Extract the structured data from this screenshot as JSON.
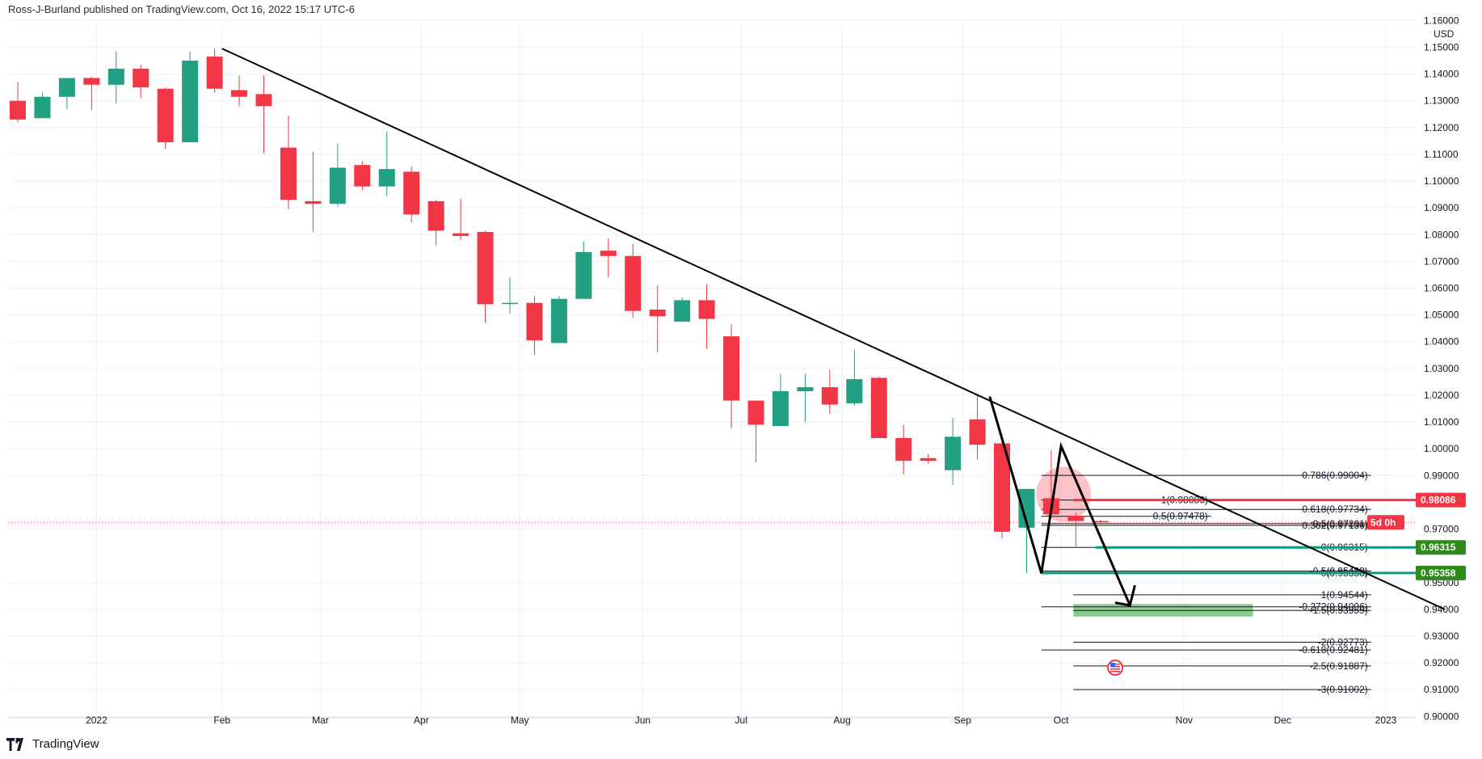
{
  "header": {
    "publisher_line": "Ross-J-Burland published on TradingView.com, Oct 16, 2022 15:17 UTC-6"
  },
  "footer": {
    "brand": "TradingView",
    "logo_icon": "tradingview-logo-icon"
  },
  "chart_data": {
    "type": "candlestick",
    "currency_label": "USD",
    "ylim": [
      0.8995,
      1.1592
    ],
    "y_ticks": [
      "1.16000",
      "1.15000",
      "1.14000",
      "1.13000",
      "1.12000",
      "1.11000",
      "1.10000",
      "1.09000",
      "1.08000",
      "1.07000",
      "1.06000",
      "1.05000",
      "1.04000",
      "1.03000",
      "1.02000",
      "1.01000",
      "1.00000",
      "0.99000",
      "0.97000",
      "0.95000",
      "0.94000",
      "0.93000",
      "0.92000",
      "0.91000",
      "0.90000"
    ],
    "x_ticks": [
      {
        "label": "2022",
        "week": 3.2
      },
      {
        "label": "Feb",
        "week": 8.3
      },
      {
        "label": "Mar",
        "week": 12.3
      },
      {
        "label": "Apr",
        "week": 16.4
      },
      {
        "label": "May",
        "week": 20.4
      },
      {
        "label": "Jun",
        "week": 25.4
      },
      {
        "label": "Jul",
        "week": 29.4
      },
      {
        "label": "Aug",
        "week": 33.5
      },
      {
        "label": "Sep",
        "week": 38.4
      },
      {
        "label": "Oct",
        "week": 42.4
      },
      {
        "label": "Nov",
        "week": 47.4
      },
      {
        "label": "Dec",
        "week": 51.4
      },
      {
        "label": "2023",
        "week": 55.6
      }
    ],
    "candles": [
      {
        "o": 1.13,
        "h": 1.137,
        "l": 1.122,
        "c": 1.123
      },
      {
        "o": 1.1235,
        "h": 1.133,
        "l": 1.1235,
        "c": 1.1315
      },
      {
        "o": 1.1315,
        "h": 1.137,
        "l": 1.127,
        "c": 1.1385
      },
      {
        "o": 1.1385,
        "h": 1.139,
        "l": 1.1265,
        "c": 1.136
      },
      {
        "o": 1.136,
        "h": 1.1485,
        "l": 1.129,
        "c": 1.142
      },
      {
        "o": 1.142,
        "h": 1.1435,
        "l": 1.131,
        "c": 1.135
      },
      {
        "o": 1.1345,
        "h": 1.135,
        "l": 1.112,
        "c": 1.1145
      },
      {
        "o": 1.1145,
        "h": 1.1485,
        "l": 1.1145,
        "c": 1.145
      },
      {
        "o": 1.1465,
        "h": 1.1495,
        "l": 1.133,
        "c": 1.1345
      },
      {
        "o": 1.134,
        "h": 1.1395,
        "l": 1.128,
        "c": 1.1315
      },
      {
        "o": 1.1325,
        "h": 1.1395,
        "l": 1.1105,
        "c": 1.128
      },
      {
        "o": 1.1125,
        "h": 1.1245,
        "l": 1.0895,
        "c": 1.093
      },
      {
        "o": 1.0925,
        "h": 1.111,
        "l": 1.081,
        "c": 1.0915
      },
      {
        "o": 1.0915,
        "h": 1.114,
        "l": 1.0905,
        "c": 1.105
      },
      {
        "o": 1.106,
        "h": 1.1075,
        "l": 1.0965,
        "c": 1.098
      },
      {
        "o": 1.098,
        "h": 1.1185,
        "l": 1.0945,
        "c": 1.1045
      },
      {
        "o": 1.1035,
        "h": 1.1055,
        "l": 1.0845,
        "c": 1.0875
      },
      {
        "o": 1.0925,
        "h": 1.093,
        "l": 1.076,
        "c": 1.0815
      },
      {
        "o": 1.0805,
        "h": 1.0935,
        "l": 1.078,
        "c": 1.0795
      },
      {
        "o": 1.081,
        "h": 1.0815,
        "l": 1.047,
        "c": 1.054
      },
      {
        "o": 1.0545,
        "h": 1.064,
        "l": 1.0505,
        "c": 1.0545
      },
      {
        "o": 1.0545,
        "h": 1.057,
        "l": 1.035,
        "c": 1.0405
      },
      {
        "o": 1.0395,
        "h": 1.057,
        "l": 1.0395,
        "c": 1.056
      },
      {
        "o": 1.056,
        "h": 1.0775,
        "l": 1.056,
        "c": 1.0735
      },
      {
        "o": 1.074,
        "h": 1.0785,
        "l": 1.064,
        "c": 1.072
      },
      {
        "o": 1.072,
        "h": 1.0765,
        "l": 1.049,
        "c": 1.0515
      },
      {
        "o": 1.052,
        "h": 1.061,
        "l": 1.036,
        "c": 1.0495
      },
      {
        "o": 1.0475,
        "h": 1.0565,
        "l": 1.0475,
        "c": 1.0555
      },
      {
        "o": 1.0555,
        "h": 1.0615,
        "l": 1.0375,
        "c": 1.0485
      },
      {
        "o": 1.042,
        "h": 1.0465,
        "l": 1.0075,
        "c": 1.018
      },
      {
        "o": 1.018,
        "h": 1.018,
        "l": 0.995,
        "c": 1.009
      },
      {
        "o": 1.0085,
        "h": 1.028,
        "l": 1.0085,
        "c": 1.0215
      },
      {
        "o": 1.0215,
        "h": 1.028,
        "l": 1.01,
        "c": 1.023
      },
      {
        "o": 1.023,
        "h": 1.0295,
        "l": 1.013,
        "c": 1.0165
      },
      {
        "o": 1.017,
        "h": 1.037,
        "l": 1.016,
        "c": 1.026
      },
      {
        "o": 1.0265,
        "h": 1.027,
        "l": 1.004,
        "c": 1.004
      },
      {
        "o": 1.004,
        "h": 1.009,
        "l": 0.9905,
        "c": 0.9955
      },
      {
        "o": 0.9965,
        "h": 0.998,
        "l": 0.9945,
        "c": 0.9955
      },
      {
        "o": 0.992,
        "h": 1.0115,
        "l": 0.9865,
        "c": 1.0045
      },
      {
        "o": 1.011,
        "h": 1.02,
        "l": 0.996,
        "c": 1.0015
      },
      {
        "o": 1.002,
        "h": 1.005,
        "l": 0.9665,
        "c": 0.969
      },
      {
        "o": 0.9705,
        "h": 0.985,
        "l": 0.9535,
        "c": 0.985
      },
      {
        "o": 0.9815,
        "h": 0.9995,
        "l": 0.974,
        "c": 0.9755
      },
      {
        "o": 0.975,
        "h": 0.976,
        "l": 0.9631,
        "c": 0.973
      },
      {
        "o": 0.973,
        "h": 0.9735,
        "l": 0.972,
        "c": 0.9725
      }
    ],
    "trendline": {
      "from": {
        "week": 8.3,
        "price": 1.1495
      },
      "to": {
        "week": 58.0,
        "price": 0.94
      }
    },
    "zigzag": [
      {
        "week": 39.5,
        "price": 1.0195
      },
      {
        "week": 41.6,
        "price": 0.9535
      },
      {
        "week": 42.4,
        "price": 1.001
      },
      {
        "week": 45.2,
        "price": 0.9415
      }
    ],
    "projection_arrow": {
      "from": {
        "week": 44.6,
        "price": 0.9425
      },
      "tip": {
        "week": 45.2,
        "price": 0.9415
      },
      "wing": {
        "week": 45.4,
        "price": 0.949
      }
    },
    "current_price": {
      "price": 0.9725,
      "countdown": "5d 0h"
    },
    "fib_levels": [
      {
        "label": "0.786(0.99004)",
        "price": 0.99004,
        "x0_week": 41.6,
        "x1_week": 55.0
      },
      {
        "label": "1(0.98086)",
        "price": 0.98086,
        "x0_week": 41.6,
        "x1_week": 48.5
      },
      {
        "label": "0.618(0.97734)",
        "price": 0.97734,
        "x0_week": 41.6,
        "x1_week": 55.0
      },
      {
        "label": "0.5(0.97478)",
        "price": 0.97478,
        "x0_week": 41.6,
        "x1_week": 48.5
      },
      {
        "label": "0.5(0.97201)",
        "price": 0.97201,
        "x0_week": 41.6,
        "x1_week": 55.0
      },
      {
        "label": "0.382(0.97136)",
        "price": 0.97136,
        "x0_week": 41.6,
        "x1_week": 55.0
      },
      {
        "label": "0(0.96315)",
        "price": 0.96315,
        "x0_week": 41.6,
        "x1_week": 55.0
      },
      {
        "label": "-0.5(0.95429)",
        "price": 0.95429,
        "x0_week": 41.6,
        "x1_week": 55.0
      },
      {
        "label": "0(0.95358)",
        "price": 0.95358,
        "x0_week": 41.6,
        "x1_week": 55.0
      },
      {
        "label": "1(0.94544)",
        "price": 0.94544,
        "x0_week": 42.9,
        "x1_week": 55.0
      },
      {
        "label": "-0.272(0.94096)",
        "price": 0.94096,
        "x0_week": 41.6,
        "x1_week": 55.0
      },
      {
        "label": "-1.5(0.93959)",
        "price": 0.93959,
        "x0_week": 42.9,
        "x1_week": 55.0
      },
      {
        "label": "-2(0.92773)",
        "price": 0.92773,
        "x0_week": 42.9,
        "x1_week": 55.0
      },
      {
        "label": "-0.618(0.92481)",
        "price": 0.92481,
        "x0_week": 41.6,
        "x1_week": 55.0
      },
      {
        "label": "-2.5(0.91887)",
        "price": 0.91887,
        "x0_week": 42.9,
        "x1_week": 55.0
      },
      {
        "label": "-3(0.91002)",
        "price": 0.91002,
        "x0_week": 42.9,
        "x1_week": 55.0
      }
    ],
    "highlight_lines": [
      {
        "price": 0.98086,
        "x0_week": 42.9,
        "x1_week": 58.0,
        "color": "#f23645"
      },
      {
        "price": 0.96315,
        "x0_week": 43.8,
        "x1_week": 58.0,
        "color": "#089981"
      },
      {
        "price": 0.95358,
        "x0_week": 41.6,
        "x1_week": 58.0,
        "color": "#089981"
      }
    ],
    "price_tags": [
      {
        "text": "0.98086",
        "price": 0.98086,
        "color": "#f23645"
      },
      {
        "text": "0.96315",
        "price": 0.96315,
        "color": "#2f8a1a"
      },
      {
        "text": "0.95358",
        "price": 0.95358,
        "color": "#2f8a1a"
      }
    ],
    "target_zone": {
      "x0_week": 42.9,
      "x1_week": 50.2,
      "price_top": 0.942,
      "price_bottom": 0.9373,
      "color": "#66bb6a"
    },
    "highlight_circle": {
      "week": 42.5,
      "price": 0.983,
      "color": "#f23645"
    },
    "colors": {
      "up": "#26a69a",
      "up_body": "#22a083",
      "down": "#f23645",
      "trendline": "#000000",
      "grid": "#eef0f4"
    }
  }
}
